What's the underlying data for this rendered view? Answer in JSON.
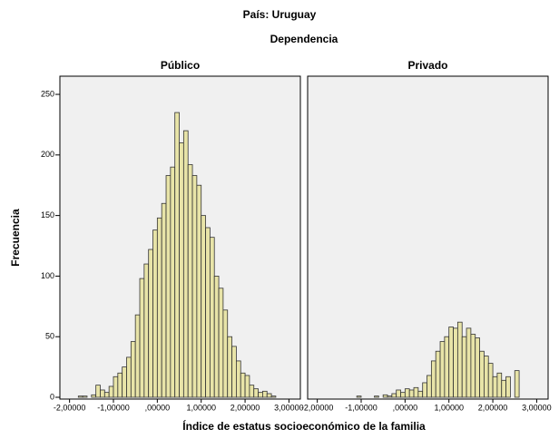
{
  "title": "País: Uruguay",
  "subtitle": "Dependencia",
  "x_label": "Índice de estatus socioeconómico de la familia",
  "y_label": "Frecuencia",
  "chart_data": [
    {
      "type": "histogram",
      "title": "Público",
      "color": "#e8e4a8",
      "bins": [
        -1.8,
        -1.7,
        -1.6,
        -1.5,
        -1.4,
        -1.3,
        -1.2,
        -1.1,
        -1.0,
        -0.9,
        -0.8,
        -0.7,
        -0.6,
        -0.5,
        -0.4,
        -0.3,
        -0.2,
        -0.1,
        0.0,
        0.1,
        0.2,
        0.3,
        0.4,
        0.5,
        0.6,
        0.7,
        0.8,
        0.9,
        1.0,
        1.1,
        1.2,
        1.3,
        1.4,
        1.5,
        1.6,
        1.7,
        1.8,
        1.9,
        2.0,
        2.1,
        2.2,
        2.3,
        2.4,
        2.5,
        2.6,
        2.7,
        2.8
      ],
      "values": [
        1,
        1,
        0,
        2,
        10,
        6,
        4,
        9,
        17,
        20,
        25,
        33,
        46,
        68,
        98,
        110,
        122,
        138,
        148,
        160,
        183,
        190,
        235,
        210,
        220,
        192,
        183,
        175,
        150,
        140,
        132,
        100,
        90,
        72,
        50,
        42,
        30,
        20,
        18,
        10,
        7,
        4,
        5,
        3,
        1,
        0
      ],
      "xlim": [
        -2.22,
        3.26
      ],
      "xticks": [
        {
          "value": -2,
          "label": "-2,00000"
        },
        {
          "value": -1,
          "label": "-1,00000"
        },
        {
          "value": 0,
          "label": ",00000"
        },
        {
          "value": 1,
          "label": "1,00000"
        },
        {
          "value": 2,
          "label": "2,00000"
        },
        {
          "value": 3,
          "label": "3,00000"
        }
      ],
      "ylim": [
        -1.5,
        265
      ],
      "yticks": [
        0,
        50,
        100,
        150,
        200,
        250
      ]
    },
    {
      "type": "histogram",
      "title": "Privado",
      "color": "#e8e4a8",
      "bins": [
        -1.8,
        -1.7,
        -1.6,
        -1.5,
        -1.4,
        -1.3,
        -1.2,
        -1.1,
        -1.0,
        -0.9,
        -0.8,
        -0.7,
        -0.6,
        -0.5,
        -0.4,
        -0.3,
        -0.2,
        -0.1,
        0.0,
        0.1,
        0.2,
        0.3,
        0.4,
        0.5,
        0.6,
        0.7,
        0.8,
        0.9,
        1.0,
        1.1,
        1.2,
        1.3,
        1.4,
        1.5,
        1.6,
        1.7,
        1.8,
        1.9,
        2.0,
        2.1,
        2.2,
        2.3,
        2.4,
        2.5,
        2.6,
        2.7,
        2.8
      ],
      "values": [
        0,
        0,
        0,
        0,
        0,
        0,
        0,
        1,
        0,
        0,
        0,
        1,
        0,
        2,
        1,
        3,
        6,
        4,
        7,
        6,
        8,
        5,
        12,
        18,
        30,
        38,
        46,
        50,
        58,
        57,
        62,
        50,
        57,
        52,
        49,
        38,
        34,
        28,
        17,
        20,
        14,
        17,
        0,
        22,
        0,
        0
      ],
      "xlim": [
        -2.22,
        3.26
      ],
      "xticks": [
        {
          "value": -2,
          "label": "-2,00000"
        },
        {
          "value": -1,
          "label": "-1,00000"
        },
        {
          "value": 0,
          "label": ",00000"
        },
        {
          "value": 1,
          "label": "1,00000"
        },
        {
          "value": 2,
          "label": "2,00000"
        },
        {
          "value": 3,
          "label": "3,00000"
        }
      ],
      "ylim": [
        -1.5,
        265
      ]
    }
  ]
}
